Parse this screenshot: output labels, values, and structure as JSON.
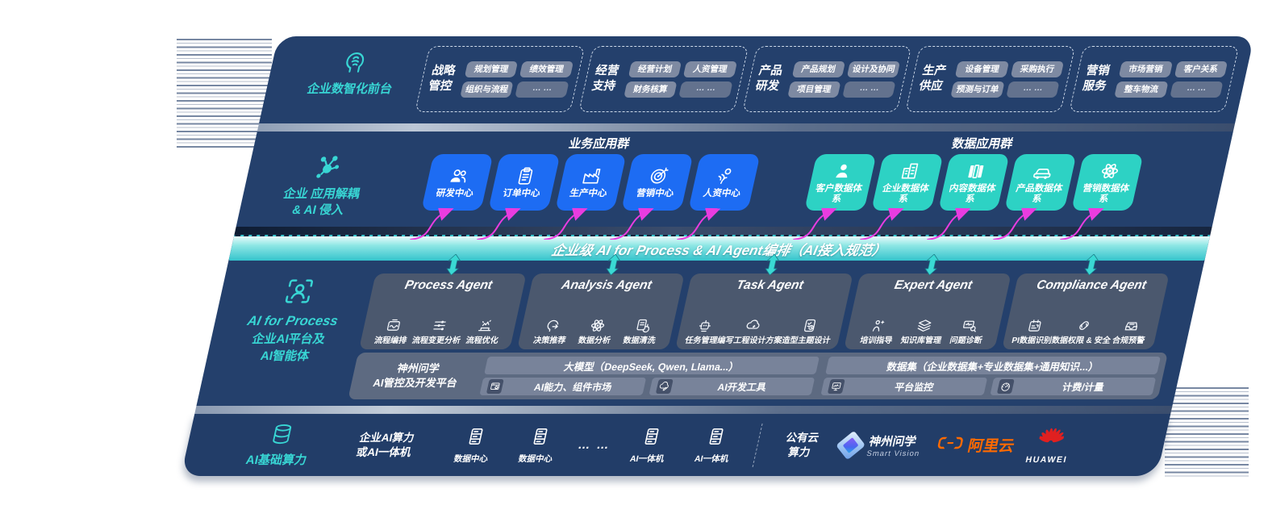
{
  "front_layer": {
    "label": "企业数智化前台",
    "icon": "brain-icon",
    "groups": [
      {
        "name": "战略管控",
        "chips": [
          "规划管理",
          "绩效管理",
          "组织与流程",
          "… …"
        ]
      },
      {
        "name": "经营支持",
        "chips": [
          "经营计划",
          "人资管理",
          "财务核算",
          "… …"
        ]
      },
      {
        "name": "产品研发",
        "chips": [
          "产品规划",
          "设计及协同",
          "项目管理",
          "… …"
        ]
      },
      {
        "name": "生产供应",
        "chips": [
          "设备管理",
          "采购执行",
          "预测与订单",
          "… …"
        ]
      },
      {
        "name": "营销服务",
        "chips": [
          "市场营销",
          "客户关系",
          "整车物流",
          "… …"
        ]
      }
    ]
  },
  "decouple_layer": {
    "icon": "network-icon",
    "label_line1": "企业 应用解耦",
    "label_line2": "& AI 侵入",
    "business_group": {
      "title": "业务应用群",
      "items": [
        {
          "icon": "users-icon",
          "label": "研发中心"
        },
        {
          "icon": "clipboard-icon",
          "label": "订单中心"
        },
        {
          "icon": "factory-icon",
          "label": "生产中心"
        },
        {
          "icon": "target-icon",
          "label": "营销中心"
        },
        {
          "icon": "hr-icon",
          "label": "人资中心"
        }
      ]
    },
    "data_group": {
      "title": "数据应用群",
      "items": [
        {
          "icon": "person-icon",
          "label": "客户数据体系"
        },
        {
          "icon": "building-icon",
          "label": "企业数据体系"
        },
        {
          "icon": "books-icon",
          "label": "内容数据体系"
        },
        {
          "icon": "car-icon",
          "label": "产品数据体系"
        },
        {
          "icon": "atom-icon",
          "label": "营销数据体系"
        }
      ]
    }
  },
  "orchestration_bar": {
    "label": "企业级 AI for Process & AI Agent编排（AI接入规范）"
  },
  "ai_layer": {
    "icon": "scan-person-icon",
    "label_en": "AI for Process",
    "label_line2": "企业AI平台及",
    "label_line3": "AI智能体",
    "agents": [
      {
        "title": "Process Agent",
        "items": [
          {
            "icon": "flow-icon",
            "label": "流程编排"
          },
          {
            "icon": "sliders-icon",
            "label": "流程变更分析"
          },
          {
            "icon": "optimize-icon",
            "label": "流程优化"
          }
        ]
      },
      {
        "title": "Analysis Agent",
        "items": [
          {
            "icon": "decision-head-icon",
            "label": "决策推荐"
          },
          {
            "icon": "atom-icon",
            "label": "数据分析"
          },
          {
            "icon": "doc-refresh-icon",
            "label": "数据清洗"
          }
        ]
      },
      {
        "title": "Task Agent",
        "items": [
          {
            "icon": "robot-icon",
            "label": "任务管理"
          },
          {
            "icon": "cloud-edit-icon",
            "label": "编写工程设计方案"
          },
          {
            "icon": "checklist-card-icon",
            "label": "造型主题设计"
          }
        ]
      },
      {
        "title": "Expert Agent",
        "items": [
          {
            "icon": "training-icon",
            "label": "培训指导"
          },
          {
            "icon": "layers-icon",
            "label": "知识库管理"
          },
          {
            "icon": "diagnose-icon",
            "label": "问题诊断"
          }
        ]
      },
      {
        "title": "Compliance Agent",
        "items": [
          {
            "icon": "id-card-icon",
            "label": "PI数据识别"
          },
          {
            "icon": "link-shield-icon",
            "label": "数据权限 & 安全"
          },
          {
            "icon": "inbox-icon",
            "label": "合规预警"
          }
        ]
      }
    ],
    "platform": {
      "label_line1": "神州问学",
      "label_line2": "AI管控及开发平台",
      "model_bar": "大模型（DeepSeek, Qwen, Llama...）",
      "dataset_bar": "数据集（企业数据集+专业数据集+通用知识...）",
      "tools_left": [
        {
          "icon": "app-market-icon",
          "label": "AI能力、组件市场"
        },
        {
          "icon": "dev-tools-icon",
          "label": "AI开发工具"
        }
      ],
      "tools_right": [
        {
          "icon": "monitor-icon",
          "label": "平台监控"
        },
        {
          "icon": "gauge-icon",
          "label": "计费/计量"
        }
      ]
    }
  },
  "compute_layer": {
    "icon": "db-icon",
    "label": "AI基础算力",
    "enterprise_line1": "企业AI算力",
    "enterprise_line2": "或AI一体机",
    "nodes_left": [
      {
        "icon": "server-icon",
        "label": "数据中心"
      },
      {
        "icon": "server-icon",
        "label": "数据中心"
      }
    ],
    "ellipsis": "… …",
    "nodes_right": [
      {
        "icon": "server-icon",
        "label": "AI一体机"
      },
      {
        "icon": "server-icon",
        "label": "AI一体机"
      }
    ],
    "public_cloud_line1": "公有云",
    "public_cloud_line2": "算力",
    "vendors": {
      "smart_vision": {
        "name": "神州问学",
        "sub": "Smart Vision"
      },
      "alicloud": {
        "name": "阿里云"
      },
      "huawei": {
        "name": "HUAWEI"
      }
    }
  },
  "colors": {
    "accent_teal": "#2fd5c8",
    "accent_blue": "#1d6cf3",
    "arrow_magenta": "#e93ce0",
    "bar_teal": "#35c3cc",
    "panel_navy": "#24406c",
    "alicloud_orange": "#ff6a00",
    "huawei_red": "#e02020"
  }
}
